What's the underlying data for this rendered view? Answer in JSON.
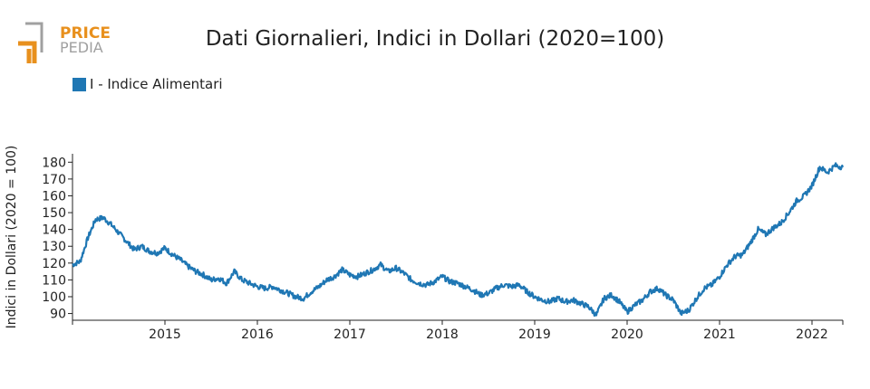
{
  "logo": {
    "line1": "PRICE",
    "line2": "PEDIA"
  },
  "colors": {
    "series": "#1f77b4",
    "logo_orange": "#e8901d",
    "logo_gray": "#a0a0a0"
  },
  "chart_data": {
    "type": "line",
    "title": "Dati Giornalieri, Indici in Dollari (2020=100)",
    "xlabel": "",
    "ylabel": "Indici in Dollari (2020 = 100)",
    "ylim": [
      86,
      185
    ],
    "xlim": [
      "2014-01",
      "2022-05"
    ],
    "yticks": [
      90,
      100,
      110,
      120,
      130,
      140,
      150,
      160,
      170,
      180
    ],
    "xticks": [
      "2015",
      "2016",
      "2017",
      "2018",
      "2019",
      "2020",
      "2021",
      "2022"
    ],
    "grid": false,
    "legend_position": "top-left",
    "series": [
      {
        "name": "I - Indice Alimentari",
        "x": [
          "2014-01",
          "2014-02",
          "2014-03",
          "2014-04",
          "2014-05",
          "2014-06",
          "2014-07",
          "2014-08",
          "2014-09",
          "2014-10",
          "2014-11",
          "2014-12",
          "2015-01",
          "2015-02",
          "2015-03",
          "2015-04",
          "2015-05",
          "2015-06",
          "2015-07",
          "2015-08",
          "2015-09",
          "2015-10",
          "2015-11",
          "2015-12",
          "2016-01",
          "2016-02",
          "2016-03",
          "2016-04",
          "2016-05",
          "2016-06",
          "2016-07",
          "2016-08",
          "2016-09",
          "2016-10",
          "2016-11",
          "2016-12",
          "2017-01",
          "2017-02",
          "2017-03",
          "2017-04",
          "2017-05",
          "2017-06",
          "2017-07",
          "2017-08",
          "2017-09",
          "2017-10",
          "2017-11",
          "2017-12",
          "2018-01",
          "2018-02",
          "2018-03",
          "2018-04",
          "2018-05",
          "2018-06",
          "2018-07",
          "2018-08",
          "2018-09",
          "2018-10",
          "2018-11",
          "2018-12",
          "2019-01",
          "2019-02",
          "2019-03",
          "2019-04",
          "2019-05",
          "2019-06",
          "2019-07",
          "2019-08",
          "2019-09",
          "2019-10",
          "2019-11",
          "2019-12",
          "2020-01",
          "2020-02",
          "2020-03",
          "2020-04",
          "2020-05",
          "2020-06",
          "2020-07",
          "2020-08",
          "2020-09",
          "2020-10",
          "2020-11",
          "2020-12",
          "2021-01",
          "2021-02",
          "2021-03",
          "2021-04",
          "2021-05",
          "2021-06",
          "2021-07",
          "2021-08",
          "2021-09",
          "2021-10",
          "2021-11",
          "2021-12",
          "2022-01",
          "2022-02",
          "2022-03",
          "2022-04",
          "2022-05"
        ],
        "values": [
          119,
          121,
          135,
          146,
          147,
          143,
          138,
          133,
          128,
          130,
          127,
          126,
          129,
          125,
          122,
          118,
          115,
          113,
          110,
          111,
          108,
          115,
          110,
          108,
          106,
          105,
          106,
          104,
          102,
          100,
          99,
          103,
          106,
          110,
          112,
          116,
          113,
          112,
          114,
          116,
          119,
          115,
          117,
          114,
          110,
          108,
          107,
          109,
          112,
          109,
          108,
          106,
          104,
          101,
          102,
          105,
          107,
          106,
          107,
          103,
          100,
          98,
          97,
          99,
          97,
          98,
          96,
          94,
          89,
          99,
          101,
          97,
          91,
          95,
          98,
          103,
          105,
          101,
          98,
          90,
          92,
          99,
          105,
          107,
          112,
          119,
          124,
          125,
          132,
          140,
          137,
          141,
          144,
          150,
          157,
          160,
          166,
          177,
          174,
          178,
          177
        ]
      }
    ]
  }
}
